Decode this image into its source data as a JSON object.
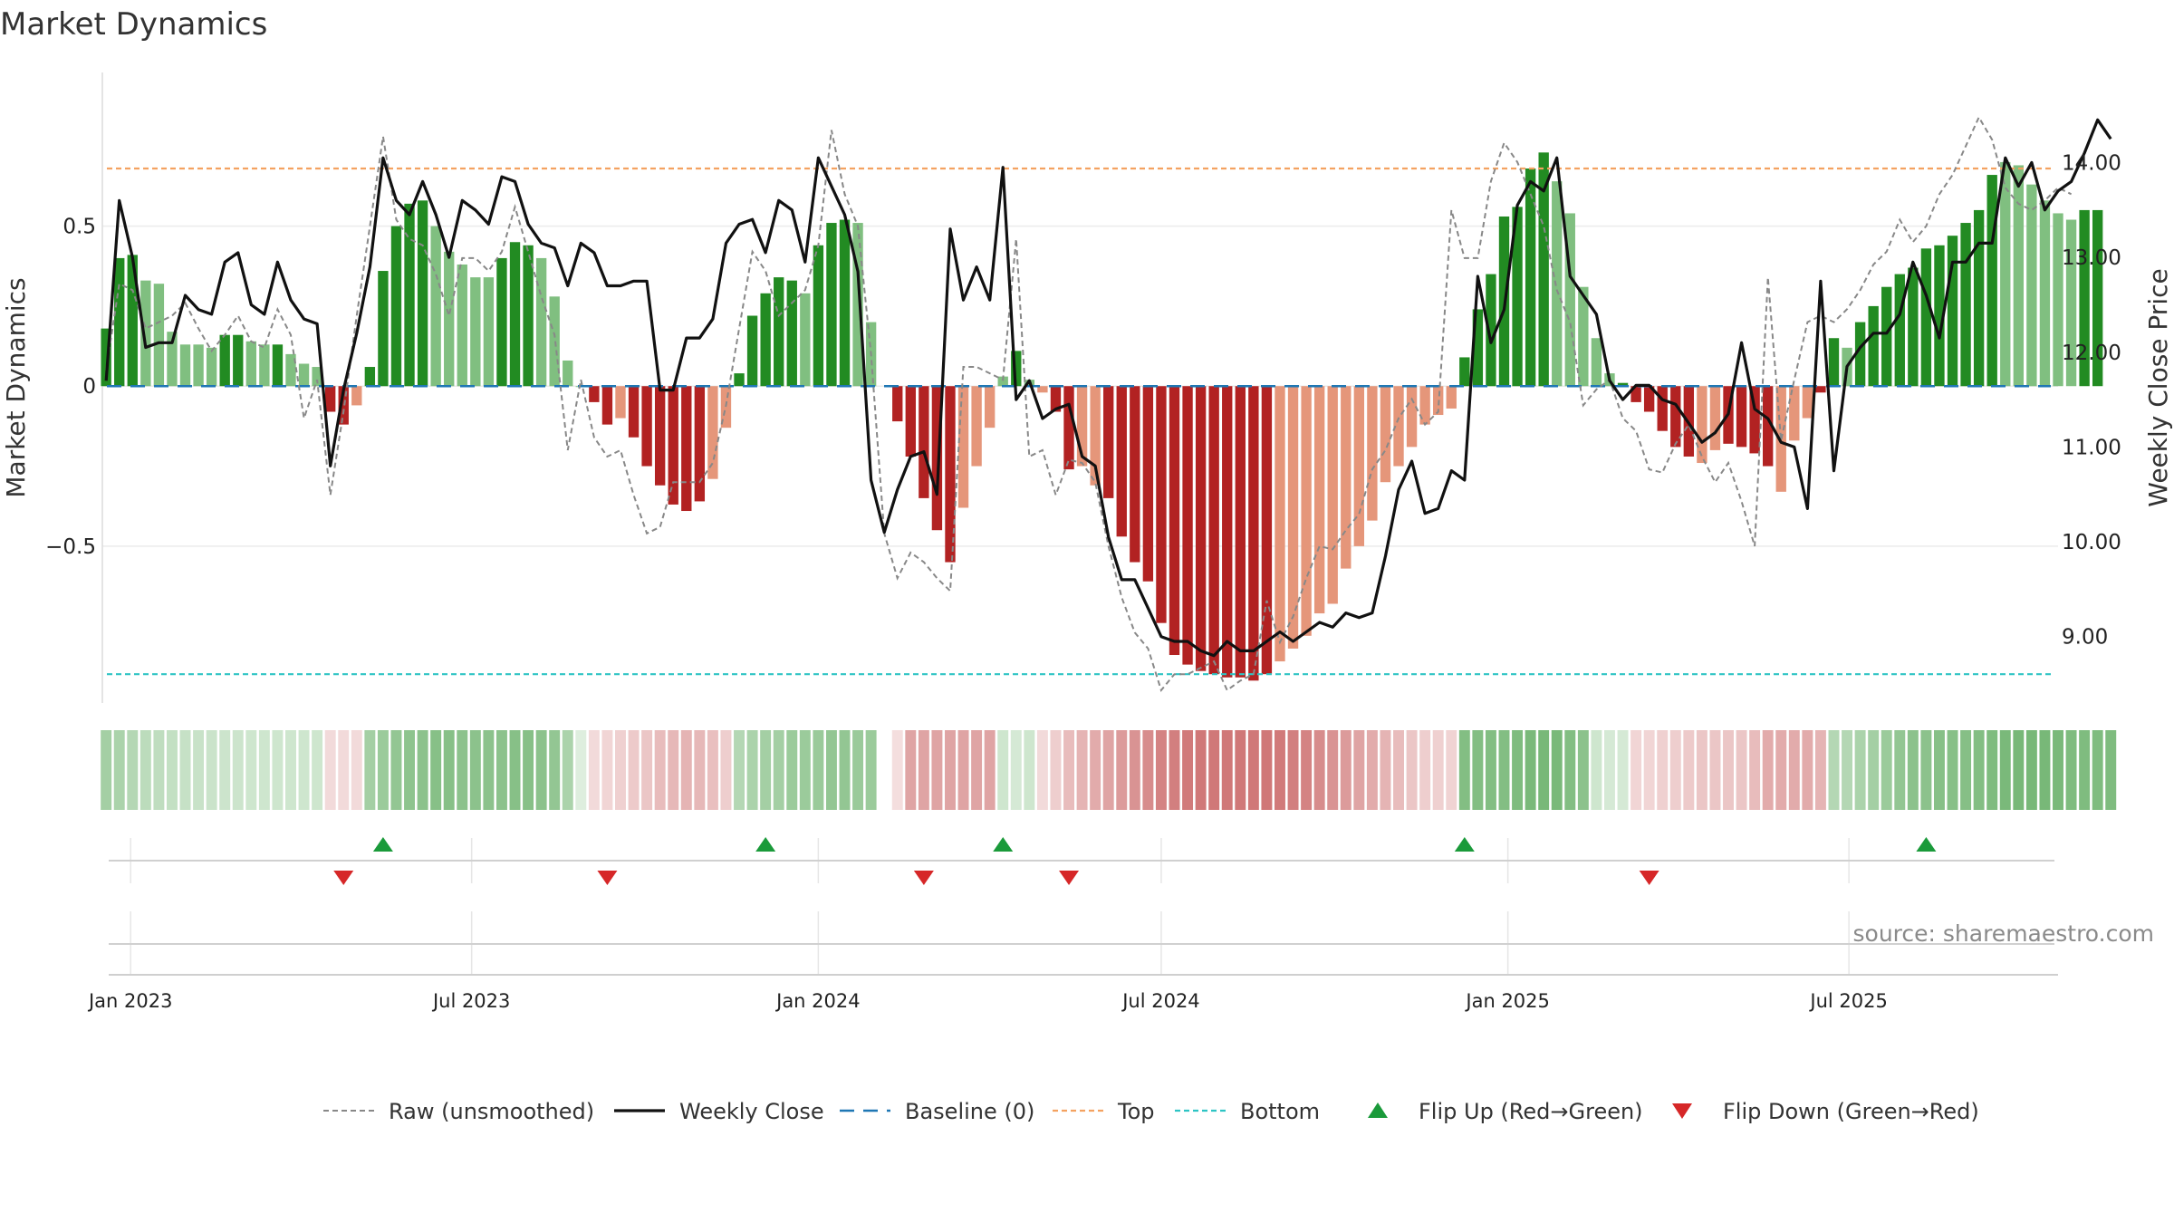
{
  "colors": {
    "strong_green": "#228b22",
    "light_green": "#80bf80",
    "strong_red": "#b22222",
    "light_red": "#e5967a",
    "raw": "#888888",
    "close": "#111111",
    "baseline": "#1f77b4",
    "top": "#f4a261",
    "bottom": "#2ec4c4",
    "flip_up": "#1a9a3a",
    "flip_down": "#d62728"
  },
  "chart_data": {
    "type": "bar",
    "title": "Market Dynamics",
    "ylabel_left": "Market Dynamics",
    "ylabel_right": "Weekly Close Price",
    "source": "source: sharemaestro.com",
    "x_ticks": [
      {
        "date": "2023-01-01",
        "label": "Jan 2023"
      },
      {
        "date": "2023-07-01",
        "label": "Jul 2023"
      },
      {
        "date": "2024-01-01",
        "label": "Jan 2024"
      },
      {
        "date": "2024-07-01",
        "label": "Jul 2024"
      },
      {
        "date": "2025-01-01",
        "label": "Jan 2025"
      },
      {
        "date": "2025-07-01",
        "label": "Jul 2025"
      }
    ],
    "x_range": [
      "2022-12-17",
      "2025-10-20"
    ],
    "start_date": "2022-12-19",
    "week_days": 7,
    "left_axis": {
      "range": [
        -0.99,
        0.98
      ],
      "ticks": [
        {
          "v": 0.5,
          "label": "0.5"
        },
        {
          "v": 0,
          "label": "0"
        },
        {
          "v": -0.5,
          "label": "−0.5"
        }
      ]
    },
    "right_axis": {
      "range": [
        8.3,
        14.95
      ],
      "ticks": [
        {
          "v": 14,
          "label": "14.00"
        },
        {
          "v": 13,
          "label": "13.00"
        },
        {
          "v": 12,
          "label": "12.00"
        },
        {
          "v": 11,
          "label": "11.00"
        },
        {
          "v": 10,
          "label": "10.00"
        },
        {
          "v": 9,
          "label": "9.00"
        }
      ]
    },
    "top_level": 0.68,
    "bottom_level": -0.9,
    "baseline_level": 0,
    "bars": [
      0.18,
      0.4,
      0.41,
      0.33,
      0.32,
      0.17,
      0.13,
      0.13,
      0.12,
      0.16,
      0.16,
      0.14,
      0.13,
      0.13,
      0.1,
      0.07,
      0.06,
      -0.08,
      -0.12,
      -0.06,
      0.06,
      0.36,
      0.5,
      0.57,
      0.58,
      0.5,
      0.42,
      0.38,
      0.34,
      0.34,
      0.4,
      0.45,
      0.44,
      0.4,
      0.28,
      0.08,
      0,
      -0.05,
      -0.12,
      -0.1,
      -0.16,
      -0.25,
      -0.31,
      -0.37,
      -0.39,
      -0.36,
      -0.29,
      -0.13,
      0.04,
      0.22,
      0.29,
      0.34,
      0.33,
      0.29,
      0.44,
      0.51,
      0.52,
      0.51,
      0.2,
      null,
      -0.11,
      -0.22,
      -0.35,
      -0.45,
      -0.55,
      -0.38,
      -0.25,
      -0.13,
      0.03,
      0.11,
      0.02,
      -0.02,
      -0.08,
      -0.26,
      -0.25,
      -0.31,
      -0.35,
      -0.47,
      -0.55,
      -0.61,
      -0.74,
      -0.84,
      -0.87,
      -0.89,
      -0.9,
      -0.91,
      -0.91,
      -0.92,
      -0.9,
      -0.86,
      -0.82,
      -0.78,
      -0.71,
      -0.68,
      -0.57,
      -0.5,
      -0.42,
      -0.3,
      -0.25,
      -0.19,
      -0.12,
      -0.09,
      -0.07,
      0.09,
      0.24,
      0.35,
      0.53,
      0.56,
      0.68,
      0.73,
      0.64,
      0.54,
      0.31,
      0.15,
      0.04,
      0.01,
      -0.05,
      -0.08,
      -0.14,
      -0.19,
      -0.22,
      -0.24,
      -0.2,
      -0.18,
      -0.19,
      -0.21,
      -0.25,
      -0.33,
      -0.17,
      -0.1,
      -0.02,
      0.15,
      0.12,
      0.2,
      0.25,
      0.31,
      0.35,
      0.37,
      0.43,
      0.44,
      0.47,
      0.51,
      0.55,
      0.66,
      0.7,
      0.69,
      0.63,
      0.58,
      0.54,
      0.52,
      0.55,
      0.55
    ],
    "bar_shade": [
      "s",
      "s",
      "s",
      "l",
      "l",
      "l",
      "l",
      "l",
      "l",
      "s",
      "s",
      "l",
      "l",
      "s",
      "l",
      "l",
      "l",
      "s",
      "s",
      "l",
      "s",
      "s",
      "s",
      "s",
      "s",
      "l",
      "l",
      "l",
      "l",
      "l",
      "s",
      "s",
      "s",
      "l",
      "l",
      "l",
      "l",
      "s",
      "s",
      "l",
      "s",
      "s",
      "s",
      "s",
      "s",
      "s",
      "l",
      "l",
      "s",
      "s",
      "s",
      "s",
      "s",
      "l",
      "s",
      "s",
      "s",
      "l",
      "l",
      "x",
      "s",
      "s",
      "s",
      "s",
      "s",
      "l",
      "l",
      "l",
      "l",
      "s",
      "l",
      "l",
      "s",
      "s",
      "l",
      "l",
      "s",
      "s",
      "s",
      "s",
      "s",
      "s",
      "s",
      "s",
      "s",
      "s",
      "s",
      "s",
      "s",
      "l",
      "l",
      "l",
      "l",
      "l",
      "l",
      "l",
      "l",
      "l",
      "l",
      "l",
      "l",
      "l",
      "l",
      "s",
      "s",
      "s",
      "s",
      "s",
      "s",
      "s",
      "l",
      "l",
      "l",
      "l",
      "l",
      "s",
      "s",
      "s",
      "s",
      "s",
      "s",
      "l",
      "l",
      "s",
      "s",
      "s",
      "s",
      "l",
      "l",
      "l",
      "s",
      "s",
      "l",
      "s",
      "s",
      "s",
      "s",
      "s",
      "s",
      "s",
      "s",
      "s",
      "s",
      "s",
      "l",
      "l",
      "l",
      "l",
      "l",
      "l",
      "s",
      "s"
    ],
    "raw": [
      0.05,
      0.32,
      0.3,
      0.18,
      0.2,
      0.22,
      0.26,
      0.18,
      0.11,
      0.16,
      0.22,
      0.14,
      0.12,
      0.24,
      0.16,
      -0.1,
      0.02,
      -0.34,
      -0.08,
      0.22,
      0.5,
      0.78,
      0.52,
      0.46,
      0.44,
      0.35,
      0.22,
      0.4,
      0.4,
      0.36,
      0.42,
      0.56,
      0.42,
      0.28,
      0.16,
      -0.2,
      0.02,
      -0.16,
      -0.22,
      -0.2,
      -0.34,
      -0.46,
      -0.44,
      -0.3,
      -0.3,
      -0.3,
      -0.24,
      -0.06,
      0.18,
      0.42,
      0.36,
      0.22,
      0.26,
      0.3,
      0.44,
      0.8,
      0.6,
      0.5,
      0.1,
      -0.46,
      -0.6,
      -0.52,
      -0.55,
      -0.6,
      -0.64,
      0.06,
      0.06,
      0.04,
      0.02,
      0.46,
      -0.22,
      -0.2,
      -0.34,
      -0.23,
      -0.24,
      -0.3,
      -0.5,
      -0.66,
      -0.77,
      -0.82,
      -0.95,
      -0.9,
      -0.9,
      -0.88,
      -0.86,
      -0.95,
      -0.92,
      -0.9,
      -0.67,
      -0.8,
      -0.72,
      -0.6,
      -0.5,
      -0.51,
      -0.45,
      -0.4,
      -0.26,
      -0.2,
      -0.1,
      -0.04,
      -0.12,
      -0.08,
      0.55,
      0.4,
      0.4,
      0.64,
      0.76,
      0.7,
      0.6,
      0.5,
      0.3,
      0.2,
      -0.06,
      -0.01,
      0.02,
      -0.1,
      -0.14,
      -0.26,
      -0.27,
      -0.18,
      -0.12,
      -0.22,
      -0.3,
      -0.24,
      -0.36,
      -0.5,
      0.34,
      -0.17,
      0.02,
      0.2,
      0.22,
      0.2,
      0.24,
      0.3,
      0.38,
      0.42,
      0.52,
      0.45,
      0.5,
      0.6,
      0.66,
      0.75,
      0.84,
      0.77,
      0.62,
      0.57,
      0.55,
      0.58,
      0.62,
      0.6
    ],
    "close": [
      11.7,
      13.6,
      13.0,
      12.05,
      12.1,
      12.1,
      12.6,
      12.45,
      12.4,
      12.95,
      13.05,
      12.5,
      12.4,
      12.95,
      12.55,
      12.35,
      12.3,
      10.8,
      11.6,
      12.2,
      12.9,
      14.05,
      13.6,
      13.45,
      13.8,
      13.45,
      13.0,
      13.6,
      13.5,
      13.35,
      13.85,
      13.8,
      13.35,
      13.15,
      13.1,
      12.7,
      13.15,
      13.05,
      12.7,
      12.7,
      12.75,
      12.75,
      11.6,
      11.6,
      12.15,
      12.15,
      12.35,
      13.15,
      13.35,
      13.4,
      13.05,
      13.6,
      13.5,
      12.95,
      14.05,
      13.75,
      13.45,
      12.85,
      10.65,
      10.1,
      10.55,
      10.9,
      10.95,
      10.5,
      13.3,
      12.55,
      12.9,
      12.55,
      13.95,
      11.5,
      11.7,
      11.3,
      11.4,
      11.45,
      10.9,
      10.8,
      10.05,
      9.6,
      9.6,
      9.3,
      9.0,
      8.95,
      8.95,
      8.85,
      8.8,
      8.95,
      8.85,
      8.85,
      8.95,
      9.05,
      8.95,
      9.05,
      9.15,
      9.1,
      9.25,
      9.2,
      9.25,
      9.85,
      10.55,
      10.85,
      10.3,
      10.35,
      10.75,
      10.65,
      12.8,
      12.1,
      12.45,
      13.55,
      13.8,
      13.7,
      14.05,
      12.8,
      12.6,
      12.4,
      11.7,
      11.5,
      11.65,
      11.65,
      11.5,
      11.45,
      11.25,
      11.05,
      11.15,
      11.35,
      12.1,
      11.4,
      11.3,
      11.05,
      11.0,
      10.35,
      12.75,
      10.75,
      11.85,
      12.05,
      12.2,
      12.2,
      12.4,
      12.95,
      12.6,
      12.15,
      12.95,
      12.95,
      13.15,
      13.15,
      14.05,
      13.75,
      14.0,
      13.5,
      13.7,
      13.8,
      14.1,
      14.45,
      14.25
    ],
    "strip_intensity": [
      0.55,
      0.5,
      0.45,
      0.4,
      0.38,
      0.36,
      0.34,
      0.33,
      0.32,
      0.31,
      0.31,
      0.3,
      0.3,
      0.3,
      0.3,
      0.3,
      0.3,
      0.22,
      0.22,
      0.22,
      0.55,
      0.6,
      0.65,
      0.68,
      0.7,
      0.72,
      0.72,
      0.7,
      0.7,
      0.7,
      0.7,
      0.72,
      0.72,
      0.7,
      0.65,
      0.5,
      0.2,
      0.22,
      0.25,
      0.28,
      0.32,
      0.35,
      0.4,
      0.42,
      0.45,
      0.42,
      0.38,
      0.3,
      0.45,
      0.5,
      0.55,
      0.55,
      0.6,
      0.6,
      0.62,
      0.65,
      0.65,
      0.62,
      0.6,
      null,
      0.2,
      0.55,
      0.55,
      0.55,
      0.55,
      0.55,
      0.55,
      0.55,
      0.3,
      0.25,
      0.3,
      0.22,
      0.3,
      0.4,
      0.45,
      0.5,
      0.55,
      0.6,
      0.65,
      0.7,
      0.75,
      0.78,
      0.8,
      0.82,
      0.82,
      0.82,
      0.82,
      0.82,
      0.82,
      0.8,
      0.78,
      0.75,
      0.7,
      0.65,
      0.6,
      0.55,
      0.5,
      0.45,
      0.4,
      0.35,
      0.3,
      0.28,
      0.26,
      0.75,
      0.75,
      0.75,
      0.75,
      0.78,
      0.8,
      0.82,
      0.8,
      0.75,
      0.7,
      0.3,
      0.25,
      0.25,
      0.25,
      0.25,
      0.28,
      0.3,
      0.32,
      0.35,
      0.35,
      0.35,
      0.35,
      0.4,
      0.5,
      0.5,
      0.5,
      0.5,
      0.45,
      0.45,
      0.45,
      0.5,
      0.55,
      0.6,
      0.65,
      0.7,
      0.7,
      0.72,
      0.72,
      0.74,
      0.75,
      0.78,
      0.8,
      0.82,
      0.82,
      0.82,
      0.8,
      0.78,
      0.78,
      0.78,
      0.78
    ],
    "flip_up_weeks": [
      21,
      50,
      68,
      103,
      138
    ],
    "flip_down_weeks": [
      18,
      38,
      62,
      73,
      117
    ],
    "legend": [
      {
        "key": "raw",
        "label": "Raw (unsmoothed)"
      },
      {
        "key": "close",
        "label": "Weekly Close"
      },
      {
        "key": "baseline",
        "label": "Baseline (0)"
      },
      {
        "key": "top",
        "label": "Top"
      },
      {
        "key": "bottom",
        "label": "Bottom"
      },
      {
        "key": "flip_up",
        "label": "Flip Up (Red→Green)"
      },
      {
        "key": "flip_down",
        "label": "Flip Down (Green→Red)"
      }
    ]
  }
}
